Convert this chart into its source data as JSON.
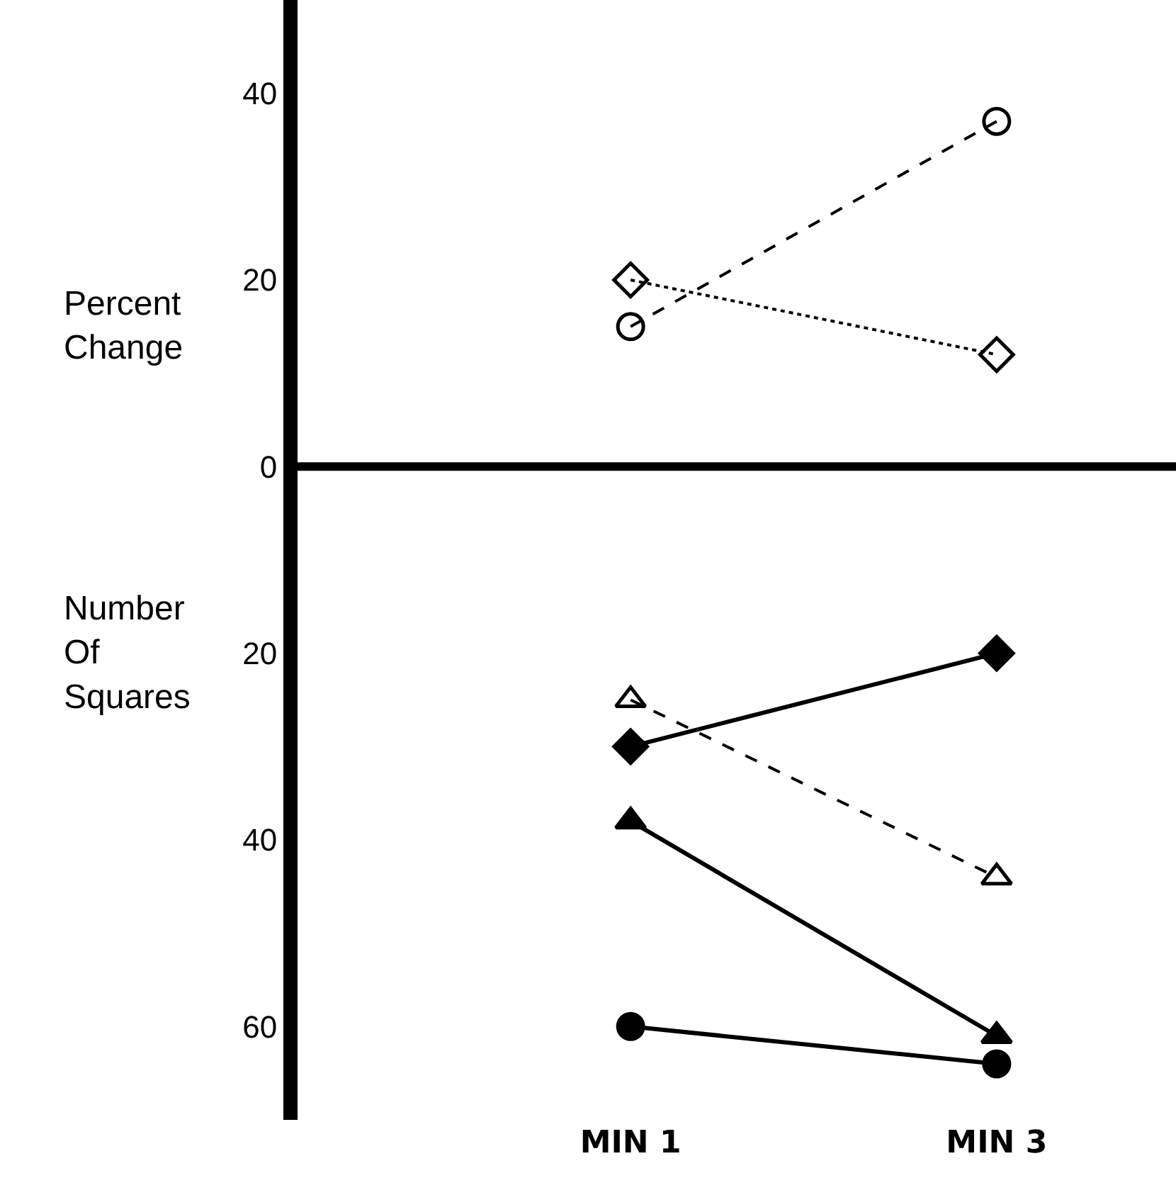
{
  "chart_data": {
    "type": "line",
    "categories": [
      "MIN 1",
      "MIN 3"
    ],
    "series": [
      {
        "color": "#000000",
        "marker": "circle-open",
        "line_style": "dashed",
        "values": [
          15,
          37
        ]
      },
      {
        "color": "#000000",
        "marker": "diamond-open",
        "line_style": "dotted",
        "values": [
          20,
          12
        ]
      },
      {
        "color": "#000000",
        "marker": "triangle-open",
        "line_style": "dashed",
        "values": [
          -25,
          -44
        ]
      },
      {
        "color": "#000000",
        "marker": "diamond",
        "line_style": "solid",
        "values": [
          -30,
          -20
        ]
      },
      {
        "color": "#000000",
        "marker": "triangle",
        "line_style": "solid",
        "values": [
          -38,
          -61
        ]
      },
      {
        "color": "#000000",
        "marker": "circle",
        "line_style": "solid",
        "values": [
          -60,
          -64
        ]
      }
    ],
    "ylim": [
      -70,
      50
    ],
    "yticks": [
      40,
      20,
      {
        "value": 0,
        "label": "0"
      },
      {
        "value": -20,
        "label": "20"
      },
      {
        "value": -40,
        "label": "40"
      },
      {
        "value": -60,
        "label": "60"
      }
    ],
    "annotations": [
      "Percent\nChange",
      "Number\nOf\nSquares"
    ],
    "ref_lines": [
      {
        "axis": "y",
        "value": 0,
        "color": "#000000",
        "line_style": "solid"
      }
    ],
    "grid": false
  }
}
